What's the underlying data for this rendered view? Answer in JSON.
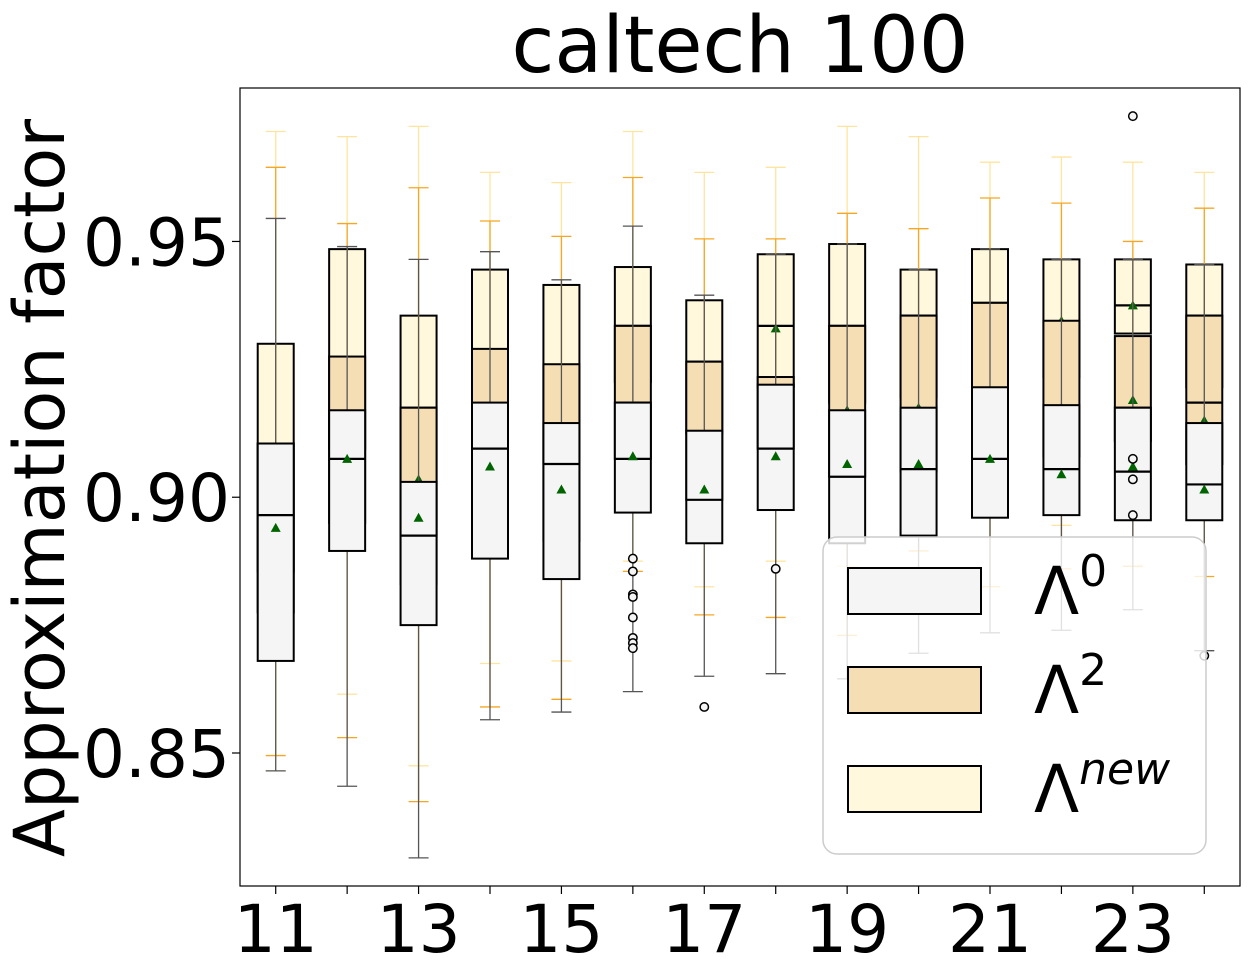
{
  "chart_data": {
    "type": "box",
    "title": "caltech 100",
    "xlabel": "",
    "ylabel": "Approximation factor",
    "ylim": [
      0.824,
      0.98
    ],
    "xlim": [
      10.5,
      24.5
    ],
    "x_ticks": [
      11,
      12,
      13,
      14,
      15,
      16,
      17,
      18,
      19,
      20,
      21,
      22,
      23,
      24
    ],
    "x_tick_labels": [
      "11",
      "",
      "13",
      "",
      "15",
      "",
      "17",
      "",
      "19",
      "",
      "21",
      "",
      "23",
      ""
    ],
    "y_ticks": [
      0.85,
      0.9,
      0.95
    ],
    "y_tick_labels": [
      "0.85",
      "0.90",
      "0.95"
    ],
    "grid": false,
    "legend_position": "lower-right",
    "legend": [
      {
        "label": "Λ",
        "sup": "0",
        "color": "#f5f5f5"
      },
      {
        "label": "Λ",
        "sup": "2",
        "color": "#f5deb3"
      },
      {
        "label": "Λ",
        "sup": "new",
        "color": "#fff8dc"
      }
    ],
    "series": [
      {
        "name": "Λ0",
        "fill": "#f5f5f5",
        "whisker_color": "#555555",
        "boxes": [
          {
            "x": 11,
            "whislo": 0.8465,
            "q1": 0.868,
            "med": 0.8965,
            "q3": 0.9105,
            "whishi": 0.9545,
            "mean": 0.894,
            "fliers": []
          },
          {
            "x": 12,
            "whislo": 0.8435,
            "q1": 0.8895,
            "med": 0.9075,
            "q3": 0.917,
            "whishi": 0.949,
            "mean": 0.9075,
            "fliers": []
          },
          {
            "x": 13,
            "whislo": 0.8295,
            "q1": 0.875,
            "med": 0.8925,
            "q3": 0.903,
            "whishi": 0.9465,
            "mean": 0.896,
            "fliers": []
          },
          {
            "x": 14,
            "whislo": 0.8565,
            "q1": 0.888,
            "med": 0.9095,
            "q3": 0.9185,
            "whishi": 0.948,
            "mean": 0.906,
            "fliers": []
          },
          {
            "x": 15,
            "whislo": 0.858,
            "q1": 0.884,
            "med": 0.9065,
            "q3": 0.9145,
            "whishi": 0.9425,
            "mean": 0.9015,
            "fliers": []
          },
          {
            "x": 16,
            "whislo": 0.862,
            "q1": 0.897,
            "med": 0.9075,
            "q3": 0.9185,
            "whishi": 0.953,
            "mean": 0.908,
            "fliers": [
              0.888,
              0.8855,
              0.881,
              0.8805,
              0.8765,
              0.8725,
              0.8715,
              0.8705
            ]
          },
          {
            "x": 17,
            "whislo": 0.865,
            "q1": 0.891,
            "med": 0.8995,
            "q3": 0.913,
            "whishi": 0.9395,
            "mean": 0.9015,
            "fliers": [
              0.859
            ]
          },
          {
            "x": 18,
            "whislo": 0.8655,
            "q1": 0.8975,
            "med": 0.9095,
            "q3": 0.922,
            "whishi": 0.9475,
            "mean": 0.908,
            "fliers": [
              0.886
            ]
          },
          {
            "x": 19,
            "whislo": 0.8645,
            "q1": 0.891,
            "med": 0.904,
            "q3": 0.917,
            "whishi": 0.9495,
            "mean": 0.9065,
            "fliers": []
          },
          {
            "x": 20,
            "whislo": 0.8695,
            "q1": 0.8925,
            "med": 0.9055,
            "q3": 0.9175,
            "whishi": 0.9445,
            "mean": 0.9065,
            "fliers": []
          },
          {
            "x": 21,
            "whislo": 0.8735,
            "q1": 0.896,
            "med": 0.9075,
            "q3": 0.9215,
            "whishi": 0.9485,
            "mean": 0.9075,
            "fliers": []
          },
          {
            "x": 22,
            "whislo": 0.874,
            "q1": 0.8965,
            "med": 0.9055,
            "q3": 0.918,
            "whishi": 0.9465,
            "mean": 0.9045,
            "fliers": []
          },
          {
            "x": 23,
            "whislo": 0.878,
            "q1": 0.8955,
            "med": 0.905,
            "q3": 0.9175,
            "whishi": 0.9465,
            "mean": 0.906,
            "fliers": [
              0.9745,
              0.9075,
              0.9035,
              0.8965
            ]
          },
          {
            "x": 24,
            "whislo": 0.87,
            "q1": 0.8955,
            "med": 0.9025,
            "q3": 0.9145,
            "whishi": 0.9455,
            "mean": 0.9015,
            "fliers": [
              0.869
            ]
          }
        ]
      },
      {
        "name": "Λ2",
        "fill": "#f5deb3",
        "whisker_color": "#f5a623",
        "boxes": [
          {
            "x": 11,
            "whislo": 0.8495,
            "q1": 0.8775,
            "med": 0.8855,
            "q3": 0.9105,
            "whishi": 0.9645,
            "mean": 0.8995,
            "fliers": []
          },
          {
            "x": 12,
            "whislo": 0.853,
            "q1": 0.895,
            "med": 0.9075,
            "q3": 0.9275,
            "whishi": 0.9535,
            "mean": 0.9135,
            "fliers": []
          },
          {
            "x": 13,
            "whislo": 0.8405,
            "q1": 0.883,
            "med": 0.893,
            "q3": 0.9175,
            "whishi": 0.9605,
            "mean": 0.9035,
            "fliers": []
          },
          {
            "x": 14,
            "whislo": 0.859,
            "q1": 0.898,
            "med": 0.9105,
            "q3": 0.929,
            "whishi": 0.954,
            "mean": 0.9135,
            "fliers": []
          },
          {
            "x": 15,
            "whislo": 0.8605,
            "q1": 0.8915,
            "med": 0.9075,
            "q3": 0.926,
            "whishi": 0.951,
            "mean": 0.91,
            "fliers": []
          },
          {
            "x": 16,
            "whislo": 0.8855,
            "q1": 0.9075,
            "med": 0.9185,
            "q3": 0.9335,
            "whishi": 0.9625,
            "mean": 0.917,
            "fliers": []
          },
          {
            "x": 17,
            "whislo": 0.877,
            "q1": 0.8995,
            "med": 0.9035,
            "q3": 0.9265,
            "whishi": 0.9505,
            "mean": 0.912,
            "fliers": []
          },
          {
            "x": 18,
            "whislo": 0.8765,
            "q1": 0.9095,
            "med": 0.9125,
            "q3": 0.9235,
            "whishi": 0.9505,
            "mean": 0.918,
            "fliers": []
          },
          {
            "x": 19,
            "whislo": 0.873,
            "q1": 0.904,
            "med": 0.9075,
            "q3": 0.9335,
            "whishi": 0.9555,
            "mean": 0.917,
            "fliers": []
          },
          {
            "x": 20,
            "whislo": 0.8895,
            "q1": 0.905,
            "med": 0.9055,
            "q3": 0.9355,
            "whishi": 0.9525,
            "mean": 0.9175,
            "fliers": []
          },
          {
            "x": 21,
            "whislo": 0.8825,
            "q1": 0.9075,
            "med": 0.9095,
            "q3": 0.938,
            "whishi": 0.9585,
            "mean": 0.9195,
            "fliers": []
          },
          {
            "x": 22,
            "whislo": 0.886,
            "q1": 0.908,
            "med": 0.9175,
            "q3": 0.9345,
            "whishi": 0.9575,
            "mean": 0.9175,
            "fliers": []
          },
          {
            "x": 23,
            "whislo": 0.8865,
            "q1": 0.911,
            "med": 0.9175,
            "q3": 0.9315,
            "whishi": 0.95,
            "mean": 0.919,
            "fliers": []
          },
          {
            "x": 24,
            "whislo": 0.8845,
            "q1": 0.9065,
            "med": 0.9185,
            "q3": 0.9355,
            "whishi": 0.9565,
            "mean": 0.915,
            "fliers": []
          }
        ]
      },
      {
        "name": "Λnew",
        "fill": "#fff8dc",
        "whisker_color": "#ffe4a0",
        "boxes": [
          {
            "x": 11,
            "whislo": 0.8465,
            "q1": 0.8855,
            "med": 0.9025,
            "q3": 0.93,
            "whishi": 0.9715,
            "mean": 0.909,
            "fliers": []
          },
          {
            "x": 12,
            "whislo": 0.8615,
            "q1": 0.9095,
            "med": 0.927,
            "q3": 0.9485,
            "whishi": 0.9705,
            "mean": 0.9245,
            "fliers": []
          },
          {
            "x": 13,
            "whislo": 0.8475,
            "q1": 0.8925,
            "med": 0.9175,
            "q3": 0.9355,
            "whishi": 0.9725,
            "mean": 0.9145,
            "fliers": []
          },
          {
            "x": 14,
            "whislo": 0.8675,
            "q1": 0.911,
            "med": 0.9285,
            "q3": 0.9445,
            "whishi": 0.9635,
            "mean": 0.9255,
            "fliers": []
          },
          {
            "x": 15,
            "whislo": 0.868,
            "q1": 0.9065,
            "med": 0.9255,
            "q3": 0.9415,
            "whishi": 0.9615,
            "mean": 0.9225,
            "fliers": []
          },
          {
            "x": 16,
            "whislo": 0.8875,
            "q1": 0.9225,
            "med": 0.9335,
            "q3": 0.945,
            "whishi": 0.9715,
            "mean": 0.9305,
            "fliers": []
          },
          {
            "x": 17,
            "whislo": 0.8825,
            "q1": 0.9125,
            "med": 0.9265,
            "q3": 0.9385,
            "whishi": 0.9635,
            "mean": 0.9255,
            "fliers": []
          },
          {
            "x": 18,
            "whislo": 0.8875,
            "q1": 0.9215,
            "med": 0.9335,
            "q3": 0.9475,
            "whishi": 0.9645,
            "mean": 0.933,
            "fliers": []
          },
          {
            "x": 19,
            "whislo": 0.8865,
            "q1": 0.9185,
            "med": 0.9335,
            "q3": 0.9495,
            "whishi": 0.9725,
            "mean": 0.9325,
            "fliers": []
          },
          {
            "x": 20,
            "whislo": 0.8925,
            "q1": 0.9195,
            "med": 0.9355,
            "q3": 0.9445,
            "whishi": 0.9705,
            "mean": 0.9335,
            "fliers": []
          },
          {
            "x": 21,
            "whislo": 0.8985,
            "q1": 0.9255,
            "med": 0.938,
            "q3": 0.9485,
            "whishi": 0.9655,
            "mean": 0.9365,
            "fliers": []
          },
          {
            "x": 22,
            "whislo": 0.8945,
            "q1": 0.9235,
            "med": 0.934,
            "q3": 0.9465,
            "whishi": 0.9665,
            "mean": 0.9345,
            "fliers": []
          },
          {
            "x": 23,
            "whislo": 0.8985,
            "q1": 0.932,
            "med": 0.9375,
            "q3": 0.9465,
            "whishi": 0.9655,
            "mean": 0.9375,
            "fliers": []
          },
          {
            "x": 24,
            "whislo": 0.8985,
            "q1": 0.9215,
            "med": 0.9355,
            "q3": 0.9455,
            "whishi": 0.9635,
            "mean": 0.9335,
            "fliers": []
          }
        ]
      }
    ]
  }
}
